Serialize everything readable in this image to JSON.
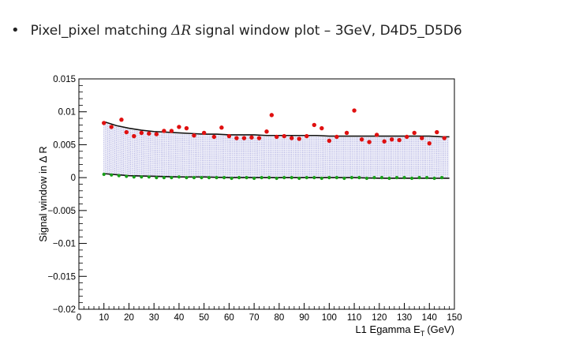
{
  "slide": {
    "bullet": "•",
    "title_before": "Pixel_pixel matching",
    "title_symbol": "ΔR",
    "title_after": "signal window plot – 3GeV, D4D5_D5D6"
  },
  "chart_data": {
    "type": "scatter",
    "xlabel_main": "L1 Egamma E",
    "xlabel_sub": "T",
    "xlabel_unit": "(GeV)",
    "ylabel": "Signal window in Δ R",
    "xlim": [
      0,
      150
    ],
    "ylim": [
      -0.02,
      0.015
    ],
    "x_ticks": [
      "0",
      "10",
      "20",
      "30",
      "40",
      "50",
      "60",
      "70",
      "80",
      "90",
      "100",
      "110",
      "120",
      "130",
      "140",
      "150"
    ],
    "y_ticks": [
      "0.015",
      "0.01",
      "0.005",
      "0",
      "−0.005",
      "−0.01",
      "−0.015",
      "−0.02"
    ],
    "grid": false,
    "legend": "none",
    "colors": {
      "upper_points": "#e01010",
      "lower_points": "#18a018",
      "fit_line": "#111111",
      "band": "#3a3ab8"
    },
    "series": [
      {
        "x": [
          10,
          13,
          17,
          19,
          22,
          25,
          28,
          31,
          34,
          37,
          40,
          43,
          46,
          50,
          54,
          57,
          60,
          63,
          66,
          69,
          72,
          75,
          77,
          79,
          82,
          85,
          88,
          91,
          94,
          97,
          100,
          103,
          107,
          110,
          113,
          116,
          119,
          122,
          125,
          128,
          131,
          134,
          137,
          140,
          143,
          146
        ],
        "y": [
          0.0083,
          0.0077,
          0.0088,
          0.0069,
          0.0063,
          0.0068,
          0.0067,
          0.0066,
          0.0071,
          0.0071,
          0.0077,
          0.0075,
          0.0064,
          0.0068,
          0.0062,
          0.0076,
          0.0063,
          0.006,
          0.006,
          0.0061,
          0.006,
          0.007,
          0.0095,
          0.0062,
          0.0063,
          0.006,
          0.0059,
          0.0063,
          0.008,
          0.0075,
          0.0056,
          0.0062,
          0.0068,
          0.0102,
          0.0058,
          0.0054,
          0.0065,
          0.0055,
          0.0058,
          0.0057,
          0.0062,
          0.0068,
          0.006,
          0.0052,
          0.0069,
          0.006
        ]
      },
      {
        "x": [
          10,
          13,
          16,
          19,
          22,
          25,
          28,
          31,
          34,
          37,
          40,
          43,
          46,
          49,
          52,
          55,
          58,
          61,
          64,
          67,
          70,
          73,
          76,
          79,
          82,
          85,
          88,
          91,
          94,
          97,
          100,
          103,
          106,
          109,
          112,
          115,
          118,
          121,
          124,
          127,
          130,
          133,
          136,
          139,
          142,
          145
        ],
        "y": [
          0.0005,
          0.0004,
          0.0003,
          0.0002,
          0.0001,
          0.0001,
          0.0001,
          0.0,
          0.0,
          0.0,
          0.0001,
          0.0,
          0.0,
          0.0,
          0.0,
          0.0,
          0.0,
          -0.0001,
          0.0,
          0.0,
          -0.0001,
          0.0,
          0.0,
          -0.0001,
          0.0,
          0.0,
          -0.0001,
          0.0,
          0.0,
          -0.0001,
          0.0,
          0.0,
          -0.0001,
          0.0,
          0.0,
          -0.0001,
          0.0,
          0.0,
          -0.0001,
          0.0,
          0.0,
          -0.0001,
          0.0,
          0.0,
          -0.0001,
          0.0
        ]
      }
    ],
    "fit_upper": {
      "x": [
        10,
        15,
        20,
        25,
        30,
        35,
        40,
        45,
        50,
        55,
        60,
        65,
        70,
        75,
        80,
        85,
        90,
        95,
        100,
        105,
        110,
        115,
        120,
        125,
        130,
        135,
        140,
        145,
        148
      ],
      "y": [
        0.0085,
        0.0079,
        0.0075,
        0.0072,
        0.007,
        0.0069,
        0.0068,
        0.0067,
        0.0066,
        0.0066,
        0.0065,
        0.0065,
        0.0065,
        0.0064,
        0.0064,
        0.0064,
        0.0064,
        0.0064,
        0.0063,
        0.0063,
        0.0063,
        0.0063,
        0.0063,
        0.0063,
        0.0063,
        0.0063,
        0.0063,
        0.0062,
        0.0062
      ]
    },
    "fit_lower": {
      "x": [
        10,
        20,
        30,
        40,
        50,
        60,
        70,
        80,
        90,
        100,
        110,
        120,
        130,
        140,
        148
      ],
      "y": [
        0.0006,
        0.0003,
        0.0002,
        0.0001,
        0.0001,
        0.0,
        0.0,
        0.0,
        0.0,
        0.0,
        0.0,
        -0.0001,
        -0.0001,
        -0.0001,
        -0.0001
      ]
    },
    "band": {
      "x": [
        10,
        15,
        20,
        25,
        30,
        35,
        40,
        45,
        50,
        55,
        60,
        65,
        70,
        75,
        80,
        85,
        90,
        95,
        100,
        105,
        110,
        115,
        120,
        125,
        130,
        135,
        140,
        145,
        148
      ],
      "upper": [
        0.0083,
        0.0077,
        0.0073,
        0.007,
        0.0068,
        0.0067,
        0.0066,
        0.0065,
        0.0064,
        0.0064,
        0.0063,
        0.0063,
        0.0063,
        0.0062,
        0.0062,
        0.0062,
        0.0062,
        0.0062,
        0.0061,
        0.0061,
        0.0061,
        0.0061,
        0.0061,
        0.0061,
        0.0061,
        0.0061,
        0.0061,
        0.006,
        0.006
      ],
      "lower": [
        0.0005,
        0.0003,
        0.0002,
        0.0001,
        0.0001,
        0.0,
        0.0,
        0.0,
        0.0,
        0.0,
        0.0,
        0.0,
        0.0,
        0.0,
        0.0,
        0.0,
        0.0,
        0.0,
        0.0,
        0.0,
        0.0,
        0.0,
        0.0,
        0.0,
        0.0,
        0.0,
        0.0,
        0.0,
        0.0
      ]
    }
  }
}
